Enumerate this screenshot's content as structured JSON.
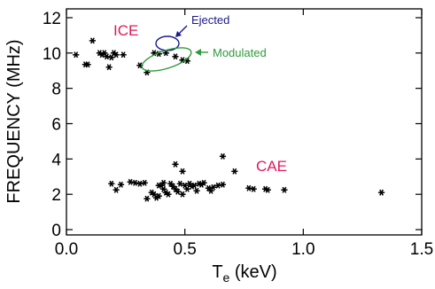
{
  "chart_data": {
    "type": "scatter",
    "title": "",
    "xlabel_main": "T",
    "xlabel_sub": "e",
    "xlabel_unit": " (keV)",
    "ylabel": "FREQUENCY (MHz)",
    "xlim": [
      0,
      1.5
    ],
    "ylim": [
      -0.3,
      12.5
    ],
    "x_ticks": [
      0.0,
      0.5,
      1.0,
      1.5
    ],
    "x_tick_labels": [
      "0.0",
      "0.5",
      "1.0",
      "1.5"
    ],
    "y_ticks": [
      0,
      2,
      4,
      6,
      8,
      10,
      12
    ],
    "y_tick_labels": [
      "0",
      "2",
      "4",
      "6",
      "8",
      "10",
      "12"
    ],
    "grid": false,
    "marker": "asterisk",
    "series": [
      {
        "points": [
          [
            0.04,
            9.9
          ],
          [
            0.08,
            9.35
          ],
          [
            0.09,
            9.35
          ],
          [
            0.11,
            10.7
          ],
          [
            0.14,
            10.0
          ],
          [
            0.15,
            9.9
          ],
          [
            0.16,
            10.0
          ],
          [
            0.17,
            9.8
          ],
          [
            0.18,
            9.2
          ],
          [
            0.19,
            9.75
          ],
          [
            0.2,
            10.0
          ],
          [
            0.21,
            9.9
          ],
          [
            0.24,
            9.9
          ],
          [
            0.31,
            9.3
          ],
          [
            0.34,
            8.9
          ],
          [
            0.37,
            10.0
          ],
          [
            0.39,
            9.95
          ],
          [
            0.42,
            10.0
          ],
          [
            0.46,
            9.8
          ],
          [
            0.49,
            9.6
          ],
          [
            0.51,
            9.55
          ],
          [
            0.19,
            2.6
          ],
          [
            0.21,
            2.25
          ],
          [
            0.23,
            2.55
          ],
          [
            0.27,
            2.7
          ],
          [
            0.29,
            2.65
          ],
          [
            0.31,
            2.6
          ],
          [
            0.33,
            2.65
          ],
          [
            0.34,
            1.75
          ],
          [
            0.36,
            2.1
          ],
          [
            0.37,
            2.0
          ],
          [
            0.38,
            1.8
          ],
          [
            0.39,
            1.9
          ],
          [
            0.4,
            2.5
          ],
          [
            0.41,
            2.3
          ],
          [
            0.42,
            2.1
          ],
          [
            0.43,
            2.0
          ],
          [
            0.44,
            2.6
          ],
          [
            0.45,
            2.45
          ],
          [
            0.46,
            2.3
          ],
          [
            0.47,
            2.15
          ],
          [
            0.48,
            2.6
          ],
          [
            0.49,
            2.0
          ],
          [
            0.5,
            2.5
          ],
          [
            0.51,
            2.3
          ],
          [
            0.52,
            2.6
          ],
          [
            0.53,
            2.45
          ],
          [
            0.54,
            2.5
          ],
          [
            0.55,
            2.2
          ],
          [
            0.56,
            2.6
          ],
          [
            0.57,
            2.55
          ],
          [
            0.58,
            2.65
          ],
          [
            0.6,
            2.35
          ],
          [
            0.61,
            2.2
          ],
          [
            0.62,
            2.4
          ],
          [
            0.64,
            2.5
          ],
          [
            0.66,
            2.55
          ],
          [
            0.46,
            3.7
          ],
          [
            0.49,
            3.3
          ],
          [
            0.66,
            4.15
          ],
          [
            0.71,
            3.3
          ],
          [
            0.41,
            2.65
          ],
          [
            0.39,
            2.5
          ],
          [
            0.77,
            2.35
          ],
          [
            0.79,
            2.3
          ],
          [
            0.84,
            2.3
          ],
          [
            0.85,
            2.25
          ],
          [
            0.92,
            2.25
          ],
          [
            1.33,
            2.1
          ]
        ]
      }
    ],
    "annotations": {
      "ice_label": "ICE",
      "cae_label": "CAE",
      "ejected_label": "Ejected",
      "modulated_label": "Modulated",
      "ejected_color": "#1a1a8c",
      "modulated_color": "#2e9a3c",
      "label_color": "#e0195a"
    }
  }
}
